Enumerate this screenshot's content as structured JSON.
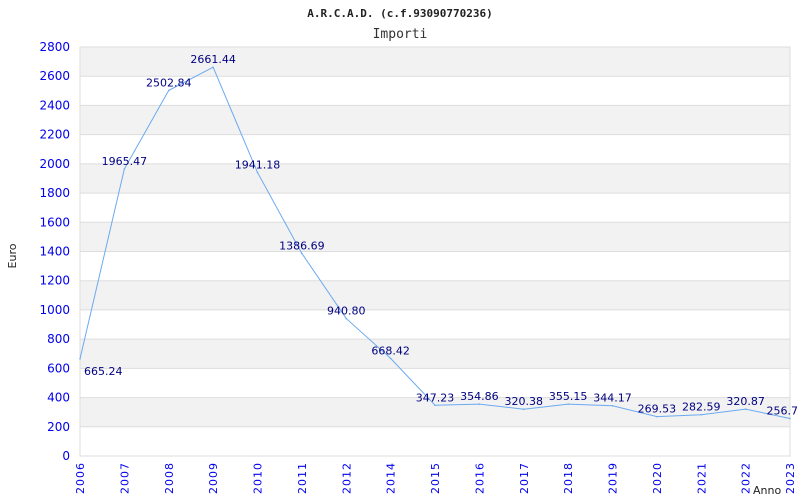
{
  "chart_data": {
    "type": "line",
    "title": "A.R.C.A.D. (c.f.93090770236)",
    "subtitle": "Importi",
    "xlabel": "Anno",
    "ylabel": "Euro",
    "ylim": [
      0,
      2800
    ],
    "yticks": [
      "0",
      "200",
      "400",
      "600",
      "800",
      "1000",
      "1200",
      "1400",
      "1600",
      "1800",
      "2000",
      "2200",
      "2400",
      "2600",
      "2800"
    ],
    "grid": true,
    "categories": [
      "2006",
      "2007",
      "2008",
      "2009",
      "2010",
      "2011",
      "2012",
      "2014",
      "2015",
      "2016",
      "2017",
      "2018",
      "2019",
      "2020",
      "2021",
      "2022",
      "2023"
    ],
    "values": [
      665.24,
      1965.47,
      2502.84,
      2661.44,
      1941.18,
      1386.69,
      940.8,
      668.42,
      347.23,
      354.86,
      320.38,
      355.15,
      344.17,
      269.53,
      282.59,
      320.87,
      256.7
    ],
    "labels": [
      "665.24",
      "1965.47",
      "2502.84",
      "2661.44",
      "1941.18",
      "1386.69",
      "940.80",
      "668.42",
      "347.23",
      "354.86",
      "320.38",
      "355.15",
      "344.17",
      "269.53",
      "282.59",
      "320.87",
      "256.7"
    ],
    "colors": {
      "line": "#6aaaf0",
      "band": "#f2f2f2",
      "grid": "#dddddd",
      "tick": "#0000ee",
      "label": "#000080"
    }
  }
}
